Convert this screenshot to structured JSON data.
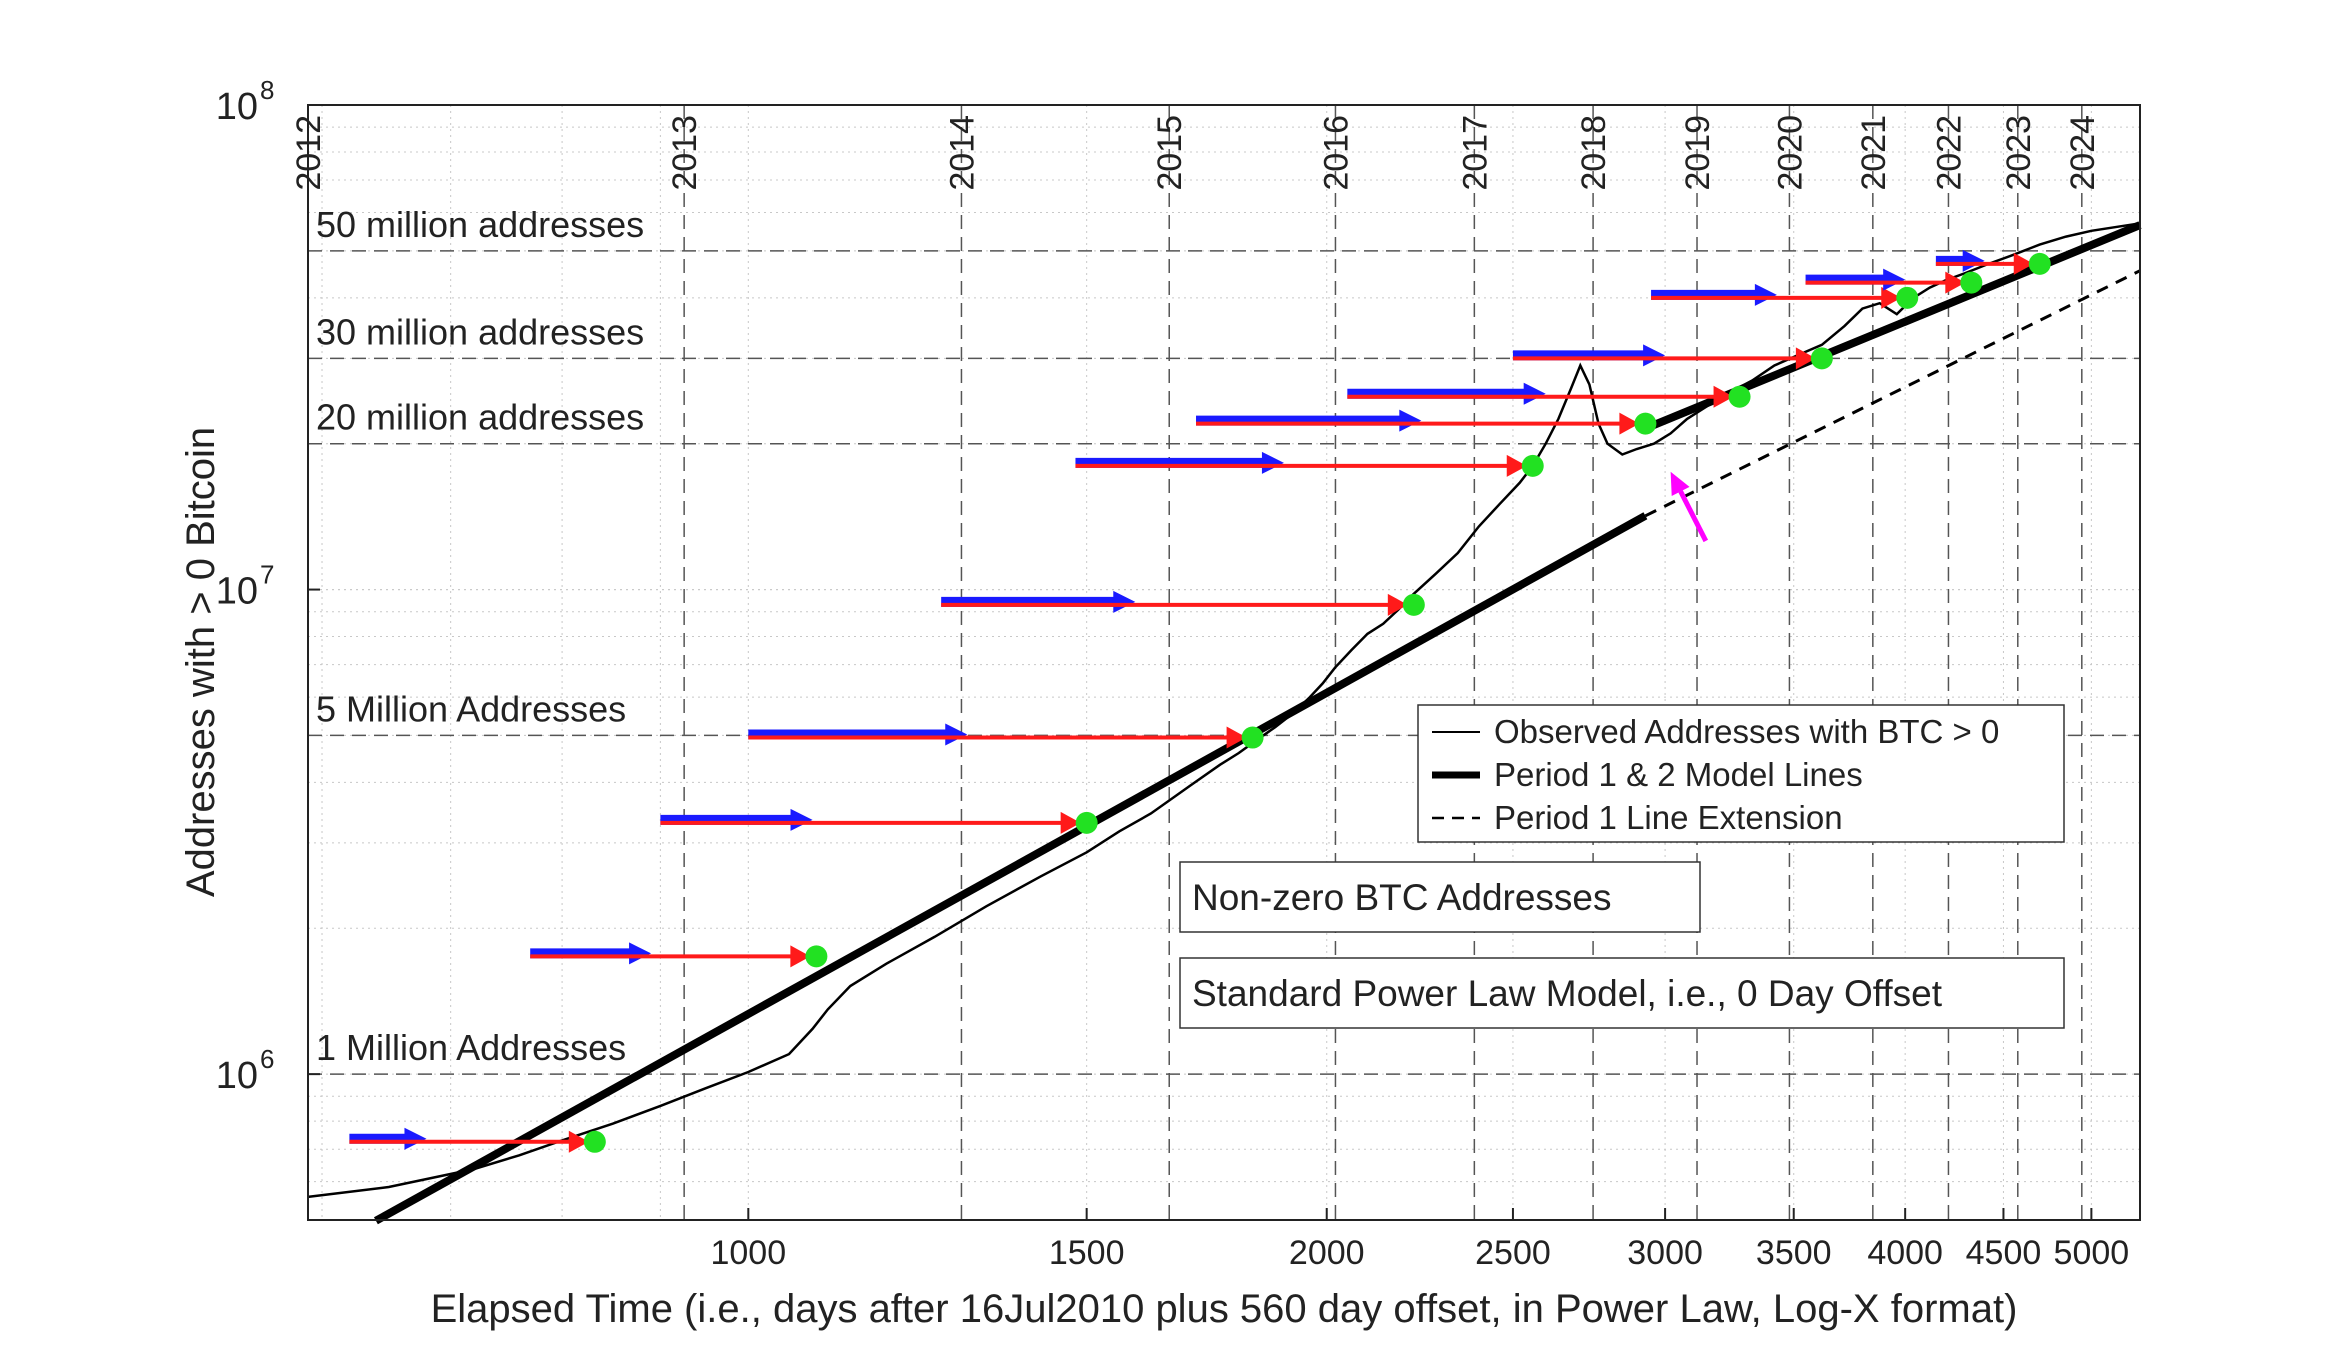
{
  "chart_data": {
    "type": "line",
    "xlabel": "Elapsed Time (i.e., days after 16Jul2010 plus 560 day offset, in Power Law, Log-X format)",
    "ylabel": "Addresses with > 0 Bitcoin",
    "x_scale": "log",
    "y_scale": "log",
    "xlim": [
      590,
      5300
    ],
    "ylim": [
      500000,
      100000000
    ],
    "grid": true,
    "x_ticks": [
      {
        "value": 1000,
        "label": "1000"
      },
      {
        "value": 1500,
        "label": "1500"
      },
      {
        "value": 2000,
        "label": "2000"
      },
      {
        "value": 2500,
        "label": "2500"
      },
      {
        "value": 3000,
        "label": "3000"
      },
      {
        "value": 3500,
        "label": "3500"
      },
      {
        "value": 4000,
        "label": "4000"
      },
      {
        "value": 4500,
        "label": "4500"
      },
      {
        "value": 5000,
        "label": "5000"
      }
    ],
    "y_ticks": [
      {
        "value": 1000000,
        "base": "10",
        "exp": "6"
      },
      {
        "value": 10000000,
        "base": "10",
        "exp": "7"
      },
      {
        "value": 100000000,
        "base": "10",
        "exp": "8"
      }
    ],
    "years": [
      {
        "label": "2012",
        "x": 560
      },
      {
        "label": "2013",
        "x": 926
      },
      {
        "label": "2014",
        "x": 1291
      },
      {
        "label": "2015",
        "x": 1656
      },
      {
        "label": "2016",
        "x": 2021
      },
      {
        "label": "2017",
        "x": 2387
      },
      {
        "label": "2018",
        "x": 2752
      },
      {
        "label": "2019",
        "x": 3117
      },
      {
        "label": "2020",
        "x": 3482
      },
      {
        "label": "2021",
        "x": 3848
      },
      {
        "label": "2022",
        "x": 4213
      },
      {
        "label": "2023",
        "x": 4578
      },
      {
        "label": "2024",
        "x": 4943
      }
    ],
    "levels": [
      {
        "label": "50 million addresses",
        "y": 50000000
      },
      {
        "label": "30 million addresses",
        "y": 30000000
      },
      {
        "label": "20 million addresses",
        "y": 20000000
      },
      {
        "label": "5 Million Addresses",
        "y": 5000000
      },
      {
        "label": "1 Million Addresses",
        "y": 1000000
      }
    ],
    "series": [
      {
        "name": "Observed Addresses with BTC > 0",
        "style": "thin-solid",
        "color": "#000000",
        "points": [
          [
            590,
            558000
          ],
          [
            650,
            585000
          ],
          [
            720,
            637000
          ],
          [
            760,
            680000
          ],
          [
            800,
            730000
          ],
          [
            850,
            790000
          ],
          [
            900,
            860000
          ],
          [
            950,
            935000
          ],
          [
            1000,
            1010000
          ],
          [
            1050,
            1100000
          ],
          [
            1080,
            1240000
          ],
          [
            1100,
            1360000
          ],
          [
            1130,
            1520000
          ],
          [
            1180,
            1690000
          ],
          [
            1250,
            1920000
          ],
          [
            1330,
            2220000
          ],
          [
            1420,
            2560000
          ],
          [
            1500,
            2870000
          ],
          [
            1560,
            3170000
          ],
          [
            1620,
            3450000
          ],
          [
            1700,
            3950000
          ],
          [
            1760,
            4350000
          ],
          [
            1800,
            4600000
          ],
          [
            1840,
            4900000
          ],
          [
            1880,
            5200000
          ],
          [
            1920,
            5550000
          ],
          [
            1960,
            6000000
          ],
          [
            1990,
            6400000
          ],
          [
            2020,
            6900000
          ],
          [
            2060,
            7500000
          ],
          [
            2100,
            8100000
          ],
          [
            2140,
            8500000
          ],
          [
            2180,
            9100000
          ],
          [
            2220,
            9800000
          ],
          [
            2280,
            10800000
          ],
          [
            2340,
            11900000
          ],
          [
            2400,
            13500000
          ],
          [
            2460,
            15000000
          ],
          [
            2520,
            16600000
          ],
          [
            2560,
            18000000
          ],
          [
            2600,
            20000000
          ],
          [
            2640,
            22500000
          ],
          [
            2680,
            26000000
          ],
          [
            2710,
            29000000
          ],
          [
            2740,
            26500000
          ],
          [
            2770,
            22000000
          ],
          [
            2800,
            20000000
          ],
          [
            2850,
            19000000
          ],
          [
            2900,
            19500000
          ],
          [
            2960,
            20000000
          ],
          [
            3020,
            21000000
          ],
          [
            3080,
            22500000
          ],
          [
            3160,
            24000000
          ],
          [
            3240,
            25500000
          ],
          [
            3330,
            27000000
          ],
          [
            3420,
            29000000
          ],
          [
            3520,
            30500000
          ],
          [
            3620,
            32000000
          ],
          [
            3720,
            35000000
          ],
          [
            3800,
            38000000
          ],
          [
            3880,
            39000000
          ],
          [
            3960,
            37000000
          ],
          [
            4040,
            40000000
          ],
          [
            4120,
            42000000
          ],
          [
            4200,
            43500000
          ],
          [
            4300,
            45000000
          ],
          [
            4420,
            47000000
          ],
          [
            4550,
            49000000
          ],
          [
            4700,
            51500000
          ],
          [
            4850,
            53500000
          ],
          [
            5000,
            55000000
          ],
          [
            5300,
            57000000
          ]
        ]
      },
      {
        "name": "Period 1 & 2 Model Lines",
        "style": "thick-solid",
        "color": "#000000",
        "segments": [
          [
            [
              640,
              498000
            ],
            [
              2930,
              14200000
            ]
          ],
          [
            [
              2930,
              21500000
            ],
            [
              5300,
              56500000
            ]
          ]
        ]
      },
      {
        "name": "Period 1 Line Extension",
        "style": "dashed",
        "color": "#000000",
        "segments": [
          [
            [
              2930,
              14200000
            ],
            [
              5300,
              45500000
            ]
          ]
        ]
      }
    ],
    "milestones": [
      {
        "y": 725000,
        "arrow_start": 620,
        "arrow_end": 680,
        "x": 832
      },
      {
        "y": 1750000,
        "arrow_start": 770,
        "arrow_end": 890,
        "x": 1085
      },
      {
        "y": 3300000,
        "arrow_start": 900,
        "arrow_end": 1080,
        "x": 1500
      },
      {
        "y": 4950000,
        "arrow_start": 1000,
        "arrow_end": 1300,
        "x": 1830
      },
      {
        "y": 9300000,
        "arrow_start": 1260,
        "arrow_end": 1590,
        "x": 2220
      },
      {
        "y": 18000000,
        "arrow_start": 1480,
        "arrow_end": 1900,
        "x": 2560
      },
      {
        "y": 22000000,
        "arrow_start": 1710,
        "arrow_end": 2240,
        "x": 2930
      },
      {
        "y": 25000000,
        "arrow_start": 2050,
        "arrow_end": 2600,
        "x": 3280
      },
      {
        "y": 30000000,
        "arrow_start": 2500,
        "arrow_end": 3000,
        "x": 3620
      },
      {
        "y": 40000000,
        "arrow_start": 2950,
        "arrow_end": 3430,
        "x": 4010
      },
      {
        "y": 43000000,
        "arrow_start": 3550,
        "arrow_end": 4000,
        "x": 4330
      },
      {
        "y": 47000000,
        "arrow_start": 4150,
        "arrow_end": 4400,
        "x": 4700
      }
    ],
    "annotations": [
      {
        "type": "magenta-arrow",
        "from": [
          3150,
          12600000
        ],
        "to": [
          3020,
          17500000
        ]
      }
    ],
    "legend": {
      "placement": "center-right",
      "entries": [
        "Observed Addresses with BTC > 0",
        "Period 1 & 2 Model Lines",
        "Period 1 Line Extension"
      ]
    },
    "text_boxes": [
      "Non-zero BTC Addresses",
      "Standard Power Law Model, i.e., 0 Day Offset"
    ],
    "colors": {
      "arrow_blue": "#1a1aff",
      "arrow_red": "#ff1a1a",
      "dot_green": "#22e122",
      "magenta": "#ff00ff",
      "grid": "#c8c8c8",
      "dashed_grid": "#555555"
    }
  }
}
